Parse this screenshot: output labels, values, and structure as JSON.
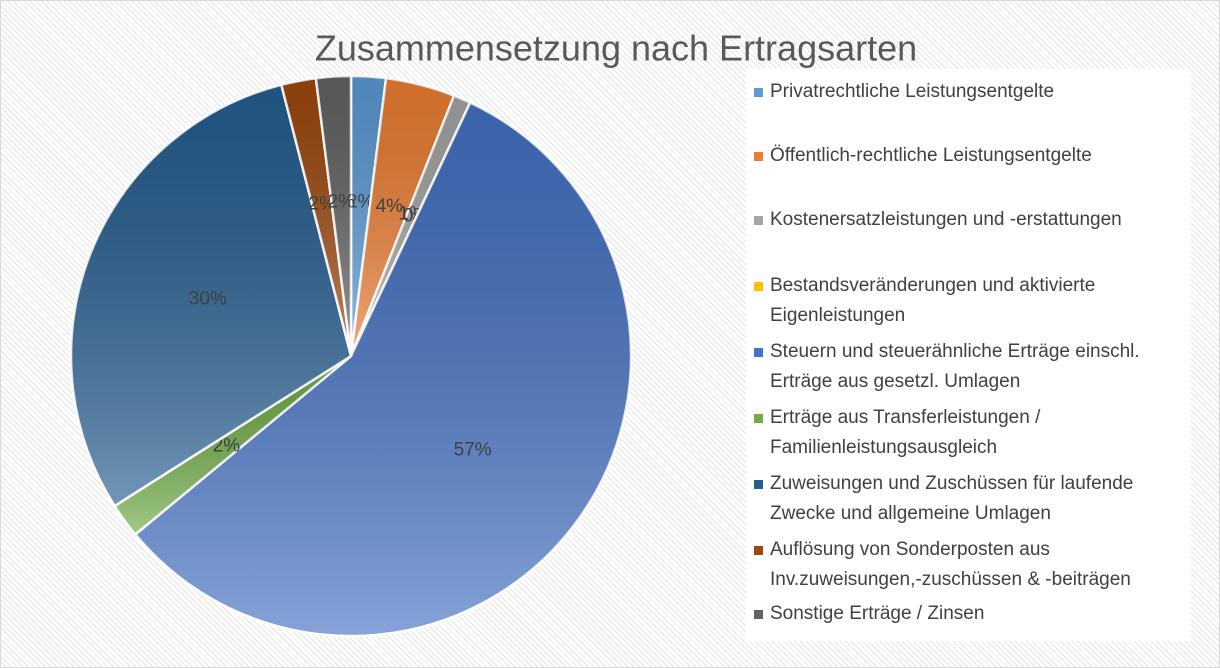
{
  "chart_data": {
    "type": "pie",
    "title": "Zusammensetzung nach Ertragsarten",
    "categories": [
      "Privatrechtliche Leistungsentgelte",
      "Öffentlich-rechtliche Leistungsentgelte",
      "Kostenersatzleistungen und -erstattungen",
      "Bestandsveränderungen und aktivierte Eigenleistungen",
      "Steuern und steuerähnliche Erträge einschl. Erträge aus gesetzl. Umlagen",
      "Erträge aus Transferleistungen / Familienleistungsausgleich",
      "Zuweisungen und Zuschüssen für laufende Zwecke und allgemeine Umlagen",
      "Auflösung von Sonderposten aus Inv.zuweisungen,-zuschüssen & -beiträgen",
      "Sonstige Erträge / Zinsen"
    ],
    "values": [
      2,
      4,
      1,
      0,
      57,
      2,
      30,
      2,
      2
    ],
    "value_labels": [
      "2%",
      "4%",
      "1%",
      "0%",
      "57%",
      "2%",
      "30%",
      "2%",
      "2%"
    ],
    "colors": [
      "#5b9bd5",
      "#ed7d31",
      "#a5a5a5",
      "#ffc000",
      "#4472c4",
      "#70ad47",
      "#255e91",
      "#9e480e",
      "#636363"
    ],
    "legend": "right"
  }
}
